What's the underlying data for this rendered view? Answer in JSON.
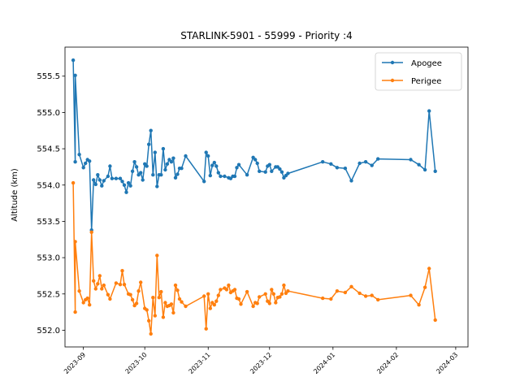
{
  "chart_data": {
    "type": "line",
    "title": "STARLINK-5901 - 55999 - Priority :4",
    "xlabel": "",
    "ylabel": "Altitude (km)",
    "ylim": [
      551.77,
      555.9
    ],
    "xlim": [
      "2023-08-23",
      "2024-03-07"
    ],
    "grid": false,
    "legend_position": "top-right",
    "y_ticks": [
      552.0,
      552.5,
      553.0,
      553.5,
      554.0,
      554.5,
      555.0,
      555.5
    ],
    "y_tick_labels": [
      "552.0",
      "552.5",
      "553.0",
      "553.5",
      "554.0",
      "554.5",
      "555.0",
      "555.5"
    ],
    "x_ticks": [
      "2023-09-01",
      "2023-10-01",
      "2023-11-01",
      "2023-12-01",
      "2024-01-01",
      "2024-02-01",
      "2024-03-01"
    ],
    "x_tick_labels": [
      "2023-09",
      "2023-10",
      "2023-11",
      "2023-12",
      "2024-01",
      "2024-02",
      "2024-03"
    ],
    "series": [
      {
        "name": "Apogee",
        "color": "#1f77b4",
        "points": [
          [
            "2023-08-27",
            555.72
          ],
          [
            "2023-08-28",
            554.32
          ],
          [
            "2023-08-28",
            555.51
          ],
          [
            "2023-08-30",
            554.42
          ],
          [
            "2023-09-01",
            554.24
          ],
          [
            "2023-09-02",
            554.3
          ],
          [
            "2023-09-03",
            554.35
          ],
          [
            "2023-09-04",
            554.33
          ],
          [
            "2023-09-05",
            553.38
          ],
          [
            "2023-09-06",
            554.07
          ],
          [
            "2023-09-07",
            554.01
          ],
          [
            "2023-09-08",
            554.14
          ],
          [
            "2023-09-09",
            554.07
          ],
          [
            "2023-09-10",
            553.99
          ],
          [
            "2023-09-11",
            554.06
          ],
          [
            "2023-09-13",
            554.12
          ],
          [
            "2023-09-14",
            554.26
          ],
          [
            "2023-09-15",
            554.09
          ],
          [
            "2023-09-17",
            554.09
          ],
          [
            "2023-09-19",
            554.09
          ],
          [
            "2023-09-20",
            554.05
          ],
          [
            "2023-09-21",
            554.0
          ],
          [
            "2023-09-22",
            553.9
          ],
          [
            "2023-09-23",
            554.03
          ],
          [
            "2023-09-24",
            553.99
          ],
          [
            "2023-09-25",
            554.19
          ],
          [
            "2023-09-26",
            554.32
          ],
          [
            "2023-09-27",
            554.25
          ],
          [
            "2023-09-28",
            554.14
          ],
          [
            "2023-09-29",
            554.17
          ],
          [
            "2023-09-30",
            554.07
          ],
          [
            "2023-10-01",
            554.29
          ],
          [
            "2023-10-02",
            554.26
          ],
          [
            "2023-10-03",
            554.56
          ],
          [
            "2023-10-04",
            554.75
          ],
          [
            "2023-10-05",
            554.14
          ],
          [
            "2023-10-06",
            554.45
          ],
          [
            "2023-10-07",
            553.98
          ],
          [
            "2023-10-08",
            554.14
          ],
          [
            "2023-10-09",
            554.14
          ],
          [
            "2023-10-10",
            554.5
          ],
          [
            "2023-10-11",
            554.21
          ],
          [
            "2023-10-12",
            554.29
          ],
          [
            "2023-10-13",
            554.35
          ],
          [
            "2023-10-14",
            554.32
          ],
          [
            "2023-10-15",
            554.37
          ],
          [
            "2023-10-16",
            554.1
          ],
          [
            "2023-10-17",
            554.15
          ],
          [
            "2023-10-18",
            554.23
          ],
          [
            "2023-10-19",
            554.23
          ],
          [
            "2023-10-21",
            554.4
          ],
          [
            "2023-10-30",
            554.05
          ],
          [
            "2023-10-31",
            554.45
          ],
          [
            "2023-11-01",
            554.4
          ],
          [
            "2023-11-02",
            554.13
          ],
          [
            "2023-11-03",
            554.27
          ],
          [
            "2023-11-04",
            554.31
          ],
          [
            "2023-11-05",
            554.26
          ],
          [
            "2023-11-06",
            554.17
          ],
          [
            "2023-11-07",
            554.12
          ],
          [
            "2023-11-09",
            554.12
          ],
          [
            "2023-11-11",
            554.1
          ],
          [
            "2023-11-12",
            554.09
          ],
          [
            "2023-11-13",
            554.12
          ],
          [
            "2023-11-14",
            554.12
          ],
          [
            "2023-11-15",
            554.24
          ],
          [
            "2023-11-16",
            554.28
          ],
          [
            "2023-11-20",
            554.14
          ],
          [
            "2023-11-23",
            554.38
          ],
          [
            "2023-11-24",
            554.35
          ],
          [
            "2023-11-25",
            554.3
          ],
          [
            "2023-11-26",
            554.19
          ],
          [
            "2023-11-29",
            554.18
          ],
          [
            "2023-11-30",
            554.26
          ],
          [
            "2023-12-01",
            554.28
          ],
          [
            "2023-12-02",
            554.19
          ],
          [
            "2023-12-04",
            554.25
          ],
          [
            "2023-12-05",
            554.25
          ],
          [
            "2023-12-06",
            554.22
          ],
          [
            "2023-12-07",
            554.18
          ],
          [
            "2023-12-08",
            554.1
          ],
          [
            "2023-12-09",
            554.13
          ],
          [
            "2023-12-10",
            554.16
          ],
          [
            "2023-12-27",
            554.32
          ],
          [
            "2023-12-31",
            554.29
          ],
          [
            "2024-01-03",
            554.24
          ],
          [
            "2024-01-07",
            554.23
          ],
          [
            "2024-01-10",
            554.06
          ],
          [
            "2024-01-14",
            554.3
          ],
          [
            "2024-01-17",
            554.32
          ],
          [
            "2024-01-20",
            554.27
          ],
          [
            "2024-01-23",
            554.36
          ],
          [
            "2024-02-08",
            554.35
          ],
          [
            "2024-02-12",
            554.28
          ],
          [
            "2024-02-15",
            554.21
          ],
          [
            "2024-02-17",
            555.02
          ],
          [
            "2024-02-20",
            554.19
          ]
        ]
      },
      {
        "name": "Perigee",
        "color": "#ff7f0e",
        "points": [
          [
            "2023-08-27",
            554.03
          ],
          [
            "2023-08-28",
            552.25
          ],
          [
            "2023-08-28",
            553.22
          ],
          [
            "2023-08-30",
            552.54
          ],
          [
            "2023-09-01",
            552.38
          ],
          [
            "2023-09-02",
            552.42
          ],
          [
            "2023-09-03",
            552.44
          ],
          [
            "2023-09-04",
            552.35
          ],
          [
            "2023-09-05",
            553.35
          ],
          [
            "2023-09-06",
            552.68
          ],
          [
            "2023-09-07",
            552.57
          ],
          [
            "2023-09-08",
            552.64
          ],
          [
            "2023-09-09",
            552.75
          ],
          [
            "2023-09-10",
            552.57
          ],
          [
            "2023-09-11",
            552.62
          ],
          [
            "2023-09-13",
            552.49
          ],
          [
            "2023-09-14",
            552.43
          ],
          [
            "2023-09-17",
            552.65
          ],
          [
            "2023-09-19",
            552.63
          ],
          [
            "2023-09-20",
            552.82
          ],
          [
            "2023-09-21",
            552.63
          ],
          [
            "2023-09-23",
            552.5
          ],
          [
            "2023-09-24",
            552.49
          ],
          [
            "2023-09-25",
            552.42
          ],
          [
            "2023-09-26",
            552.34
          ],
          [
            "2023-09-27",
            552.37
          ],
          [
            "2023-09-28",
            552.54
          ],
          [
            "2023-09-29",
            552.66
          ],
          [
            "2023-10-01",
            552.3
          ],
          [
            "2023-10-02",
            552.28
          ],
          [
            "2023-10-03",
            552.13
          ],
          [
            "2023-10-04",
            551.95
          ],
          [
            "2023-10-05",
            552.45
          ],
          [
            "2023-10-06",
            552.2
          ],
          [
            "2023-10-07",
            553.03
          ],
          [
            "2023-10-08",
            552.45
          ],
          [
            "2023-10-09",
            552.53
          ],
          [
            "2023-10-10",
            552.18
          ],
          [
            "2023-10-11",
            552.38
          ],
          [
            "2023-10-12",
            552.33
          ],
          [
            "2023-10-13",
            552.34
          ],
          [
            "2023-10-14",
            552.36
          ],
          [
            "2023-10-15",
            552.24
          ],
          [
            "2023-10-16",
            552.62
          ],
          [
            "2023-10-17",
            552.55
          ],
          [
            "2023-10-18",
            552.43
          ],
          [
            "2023-10-19",
            552.39
          ],
          [
            "2023-10-21",
            552.33
          ],
          [
            "2023-10-30",
            552.47
          ],
          [
            "2023-10-31",
            552.02
          ],
          [
            "2023-11-01",
            552.5
          ],
          [
            "2023-11-02",
            552.3
          ],
          [
            "2023-11-03",
            552.38
          ],
          [
            "2023-11-04",
            552.35
          ],
          [
            "2023-11-05",
            552.4
          ],
          [
            "2023-11-06",
            552.48
          ],
          [
            "2023-11-07",
            552.56
          ],
          [
            "2023-11-09",
            552.58
          ],
          [
            "2023-11-10",
            552.56
          ],
          [
            "2023-11-11",
            552.62
          ],
          [
            "2023-11-12",
            552.52
          ],
          [
            "2023-11-13",
            552.54
          ],
          [
            "2023-11-14",
            552.56
          ],
          [
            "2023-11-15",
            552.44
          ],
          [
            "2023-11-16",
            552.43
          ],
          [
            "2023-11-17",
            552.36
          ],
          [
            "2023-11-20",
            552.53
          ],
          [
            "2023-11-23",
            552.33
          ],
          [
            "2023-11-24",
            552.38
          ],
          [
            "2023-11-25",
            552.37
          ],
          [
            "2023-11-26",
            552.46
          ],
          [
            "2023-11-29",
            552.5
          ],
          [
            "2023-11-30",
            552.4
          ],
          [
            "2023-12-01",
            552.37
          ],
          [
            "2023-12-02",
            552.56
          ],
          [
            "2023-12-03",
            552.5
          ],
          [
            "2023-12-04",
            552.38
          ],
          [
            "2023-12-05",
            552.45
          ],
          [
            "2023-12-06",
            552.46
          ],
          [
            "2023-12-07",
            552.5
          ],
          [
            "2023-12-08",
            552.62
          ],
          [
            "2023-12-09",
            552.51
          ],
          [
            "2023-12-10",
            552.54
          ],
          [
            "2023-12-27",
            552.44
          ],
          [
            "2023-12-31",
            552.43
          ],
          [
            "2024-01-03",
            552.54
          ],
          [
            "2024-01-07",
            552.52
          ],
          [
            "2024-01-10",
            552.6
          ],
          [
            "2024-01-14",
            552.51
          ],
          [
            "2024-01-17",
            552.47
          ],
          [
            "2024-01-20",
            552.48
          ],
          [
            "2024-01-23",
            552.42
          ],
          [
            "2024-02-08",
            552.48
          ],
          [
            "2024-02-12",
            552.35
          ],
          [
            "2024-02-15",
            552.59
          ],
          [
            "2024-02-17",
            552.85
          ],
          [
            "2024-02-20",
            552.14
          ]
        ]
      }
    ]
  }
}
